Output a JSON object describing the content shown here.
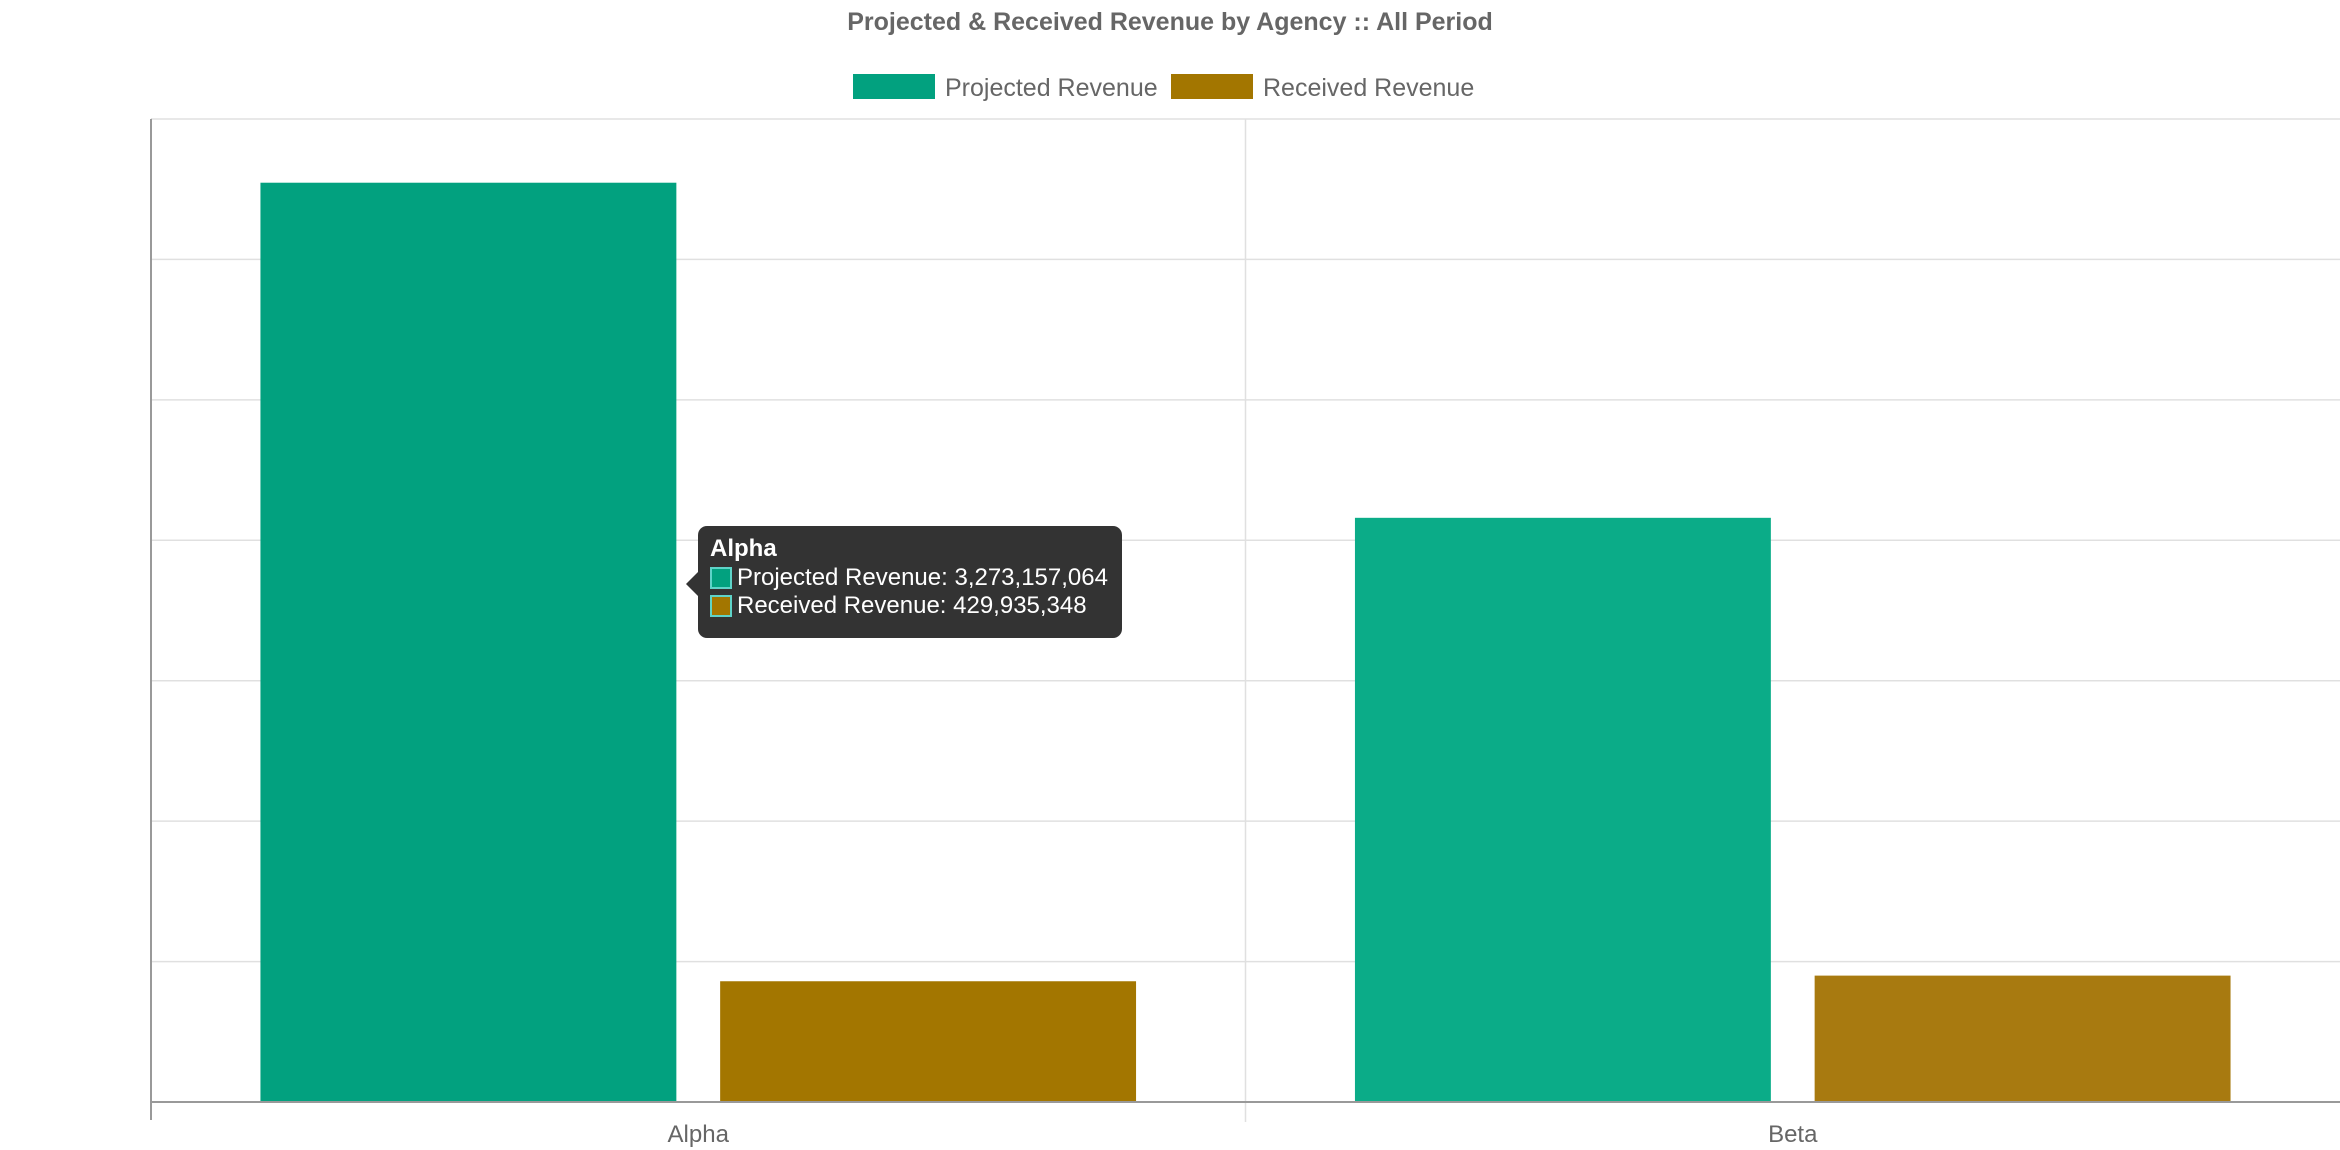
{
  "chart_data": {
    "type": "bar",
    "title": "Projected & Received Revenue by Agency :: All Period",
    "categories": [
      "Alpha",
      "Beta"
    ],
    "series": [
      {
        "name": "Projected Revenue",
        "color": "#02a17f",
        "values": [
          3273157064,
          2080000000
        ]
      },
      {
        "name": "Received Revenue",
        "color": "#a37600",
        "values": [
          429935348,
          450000000
        ]
      }
    ],
    "ylim": [
      0,
      3500000000
    ],
    "y_gridline_step": 500000000,
    "grid": true,
    "legend_position": "top-center",
    "xlabel": "",
    "ylabel": ""
  },
  "tooltip": {
    "title": "Alpha",
    "rows": [
      {
        "label": "Projected Revenue: 3,273,157,064",
        "color": "#02a17f"
      },
      {
        "label": "Received Revenue: 429,935,348",
        "color": "#a37600"
      }
    ]
  }
}
